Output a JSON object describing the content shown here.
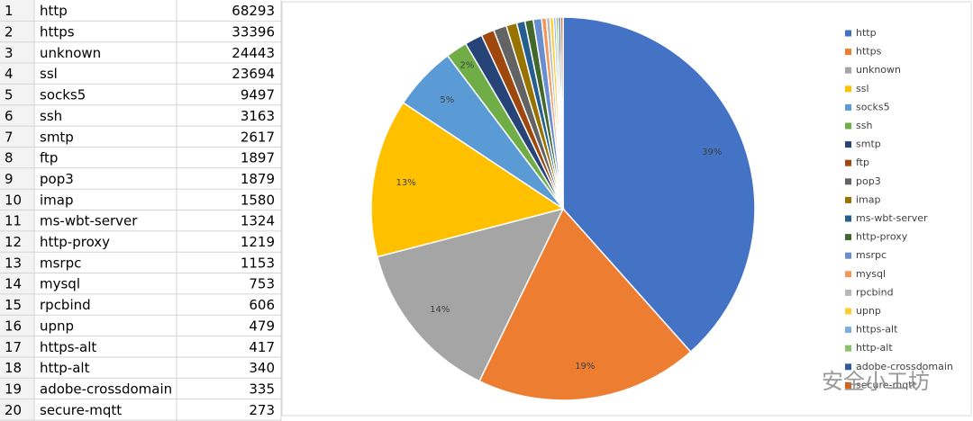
{
  "table": {
    "rows": [
      [
        1,
        "http",
        68293
      ],
      [
        2,
        "https",
        33396
      ],
      [
        3,
        "unknown",
        24443
      ],
      [
        4,
        "ssl",
        23694
      ],
      [
        5,
        "socks5",
        9497
      ],
      [
        6,
        "ssh",
        3163
      ],
      [
        7,
        "smtp",
        2617
      ],
      [
        8,
        "ftp",
        1897
      ],
      [
        9,
        "pop3",
        1879
      ],
      [
        10,
        "imap",
        1580
      ],
      [
        11,
        "ms-wbt-server",
        1324
      ],
      [
        12,
        "http-proxy",
        1219
      ],
      [
        13,
        "msrpc",
        1153
      ],
      [
        14,
        "mysql",
        753
      ],
      [
        15,
        "rpcbind",
        606
      ],
      [
        16,
        "upnp",
        479
      ],
      [
        17,
        "https-alt",
        417
      ],
      [
        18,
        "http-alt",
        340
      ],
      [
        19,
        "adobe-crossdomain",
        335
      ],
      [
        20,
        "secure-mqtt",
        273
      ]
    ]
  },
  "chart_data": {
    "type": "pie",
    "categories": [
      "http",
      "https",
      "unknown",
      "ssl",
      "socks5",
      "ssh",
      "smtp",
      "ftp",
      "pop3",
      "imap",
      "ms-wbt-server",
      "http-proxy",
      "msrpc",
      "mysql",
      "rpcbind",
      "upnp",
      "https-alt",
      "http-alt",
      "adobe-crossdomain",
      "secure-mqtt"
    ],
    "values": [
      38.5,
      18.8,
      13.8,
      13.4,
      5.4,
      1.8,
      1.5,
      1.1,
      1.1,
      0.9,
      0.7,
      0.7,
      0.7,
      0.4,
      0.3,
      0.3,
      0.2,
      0.2,
      0.2,
      0.2
    ],
    "value_labels": [
      "39%",
      "19%",
      "14%",
      "13%",
      "5%",
      "2%",
      null,
      null,
      null,
      null,
      null,
      null,
      null,
      null,
      null,
      null,
      null,
      null,
      null,
      null
    ],
    "colors": [
      "#4472c4",
      "#ed7d31",
      "#a5a5a5",
      "#ffc000",
      "#5b9bd5",
      "#70ad47",
      "#264478",
      "#9e480e",
      "#636363",
      "#997300",
      "#255e91",
      "#43682b",
      "#698ed0",
      "#f1975a",
      "#b7b7b7",
      "#ffcd33",
      "#7cafdd",
      "#8cc168",
      "#335aa1",
      "#d26012"
    ],
    "legend": "right"
  },
  "watermark": "安全小工坊"
}
